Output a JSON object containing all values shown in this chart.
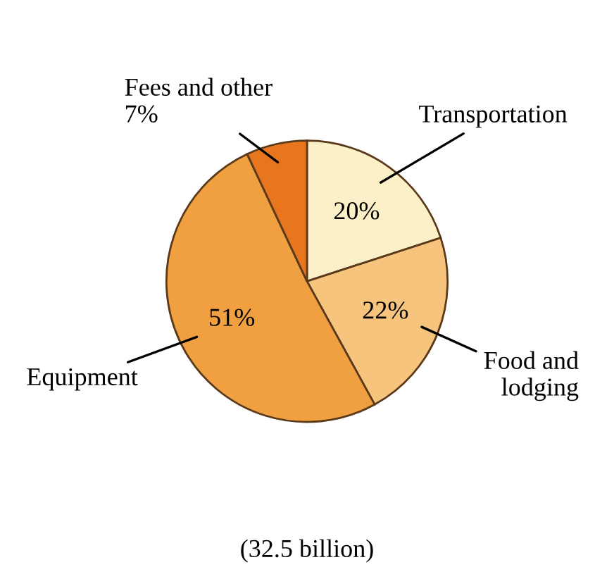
{
  "chart_data": {
    "type": "pie",
    "categories": [
      "Transportation",
      "Food and\nlodging",
      "Equipment",
      "Fees and other"
    ],
    "values": [
      20,
      22,
      51,
      7
    ],
    "value_labels": [
      "20%",
      "22%",
      "51%",
      "7%"
    ],
    "colors": [
      "#fbf0c8",
      "#f7c47e",
      "#f0a040",
      "#e8761e"
    ],
    "annotations": [
      "(32.5 billion)"
    ]
  }
}
